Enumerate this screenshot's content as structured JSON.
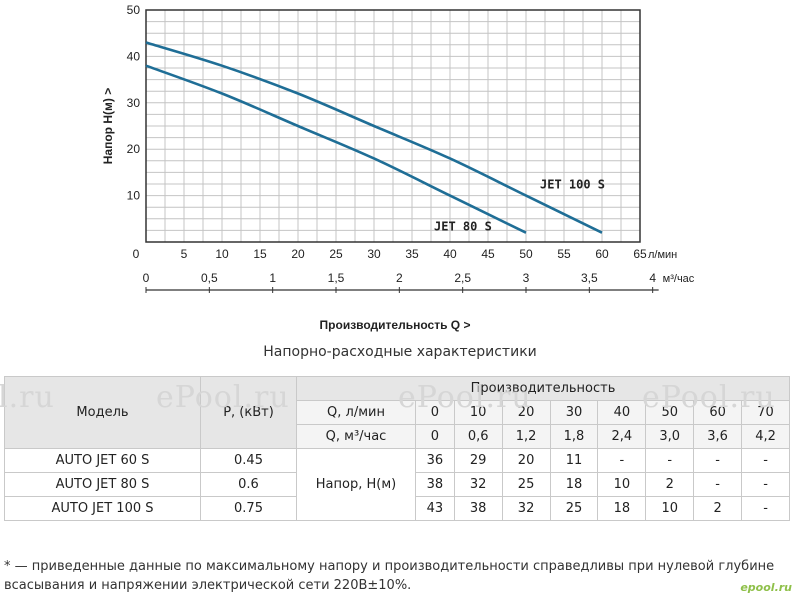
{
  "chart_data": {
    "type": "line",
    "ylabel": "Напор   Н(м)   >",
    "xlabel_primary_unit": "л/мин",
    "xlabel_secondary_unit": "м³/час",
    "xlabel": "Производительность Q   >",
    "ylim": [
      0,
      50
    ],
    "xlim": [
      0,
      65
    ],
    "y_ticks": [
      "0",
      "10",
      "20",
      "30",
      "40",
      "50"
    ],
    "x_ticks": [
      "0",
      "5",
      "10",
      "15",
      "20",
      "25",
      "30",
      "35",
      "40",
      "45",
      "50",
      "55",
      "60",
      "65"
    ],
    "x2_ticks": [
      "0",
      "0,5",
      "1",
      "1,5",
      "2",
      "2,5",
      "3",
      "3,5",
      "4"
    ],
    "x2_values": [
      0,
      0.5,
      1,
      1.5,
      2,
      2.5,
      3,
      3.5,
      4
    ],
    "grid": true,
    "line_color": "#1f6e96",
    "series": [
      {
        "name": "JET 80 S",
        "x": [
          0,
          10,
          20,
          30,
          40,
          50
        ],
        "y": [
          38,
          32,
          25,
          18,
          10,
          2
        ]
      },
      {
        "name": "JET 100 S",
        "x": [
          0,
          10,
          20,
          30,
          40,
          50,
          60
        ],
        "y": [
          43,
          38,
          32,
          25,
          18,
          10,
          2
        ]
      }
    ]
  },
  "subtitle": "Напорно-расходные характеристики",
  "table": {
    "h_model": "Модель",
    "h_power": "P, (кВт)",
    "h_perf": "Производительность",
    "q_lmin_label": "Q, л/мин",
    "q_lmin": [
      "0",
      "10",
      "20",
      "30",
      "40",
      "50",
      "60",
      "70"
    ],
    "q_m3_label": "Q, м³/час",
    "q_m3": [
      "0",
      "0,6",
      "1,2",
      "1,8",
      "2,4",
      "3,0",
      "3,6",
      "4,2"
    ],
    "head_label": "Напор, Н(м)",
    "rows": [
      {
        "model": "AUTO JET 60 S",
        "power": "0.45",
        "values": [
          "36",
          "29",
          "20",
          "11",
          "-",
          "-",
          "-",
          "-"
        ]
      },
      {
        "model": "AUTO JET 80 S",
        "power": "0.6",
        "values": [
          "38",
          "32",
          "25",
          "18",
          "10",
          "2",
          "-",
          "-"
        ]
      },
      {
        "model": "AUTO JET 100 S",
        "power": "0.75",
        "values": [
          "43",
          "38",
          "32",
          "25",
          "18",
          "10",
          "2",
          "-"
        ]
      }
    ]
  },
  "watermarks": [
    "l.ru",
    "ePool.ru",
    "ePool.ru",
    "ePool.ru"
  ],
  "footnote": "* — приведенные данные по максимальному напору и производительности справедливы при нулевой глубине всасывания и напряжении электрической сети 220В±10%.",
  "logo": "epool.ru"
}
